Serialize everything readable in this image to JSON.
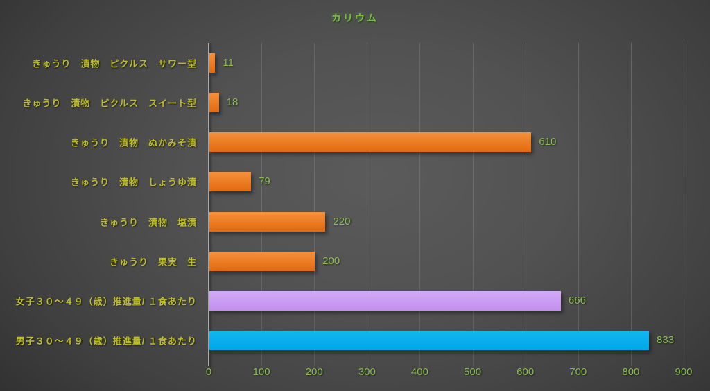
{
  "title": "カリウム",
  "colors": {
    "title_green": "#77c043",
    "value_label_green": "#8abf50",
    "category_label_yellow": "#bdbd29",
    "axis_label_green": "#85bd4d",
    "gridline_gray": "#6e6e6e",
    "axis_line_gray": "#aaaaaa",
    "series": {
      "orange": {
        "top": "#f5913c",
        "bottom": "#e3690e"
      },
      "purple": {
        "top": "#d2aaf6",
        "bottom": "#c28fee"
      },
      "blue": {
        "top": "#13b7f2",
        "bottom": "#00a6e6"
      }
    }
  },
  "chart_data": {
    "type": "bar",
    "orientation": "horizontal",
    "title": "カリウム",
    "xlabel": "",
    "ylabel": "",
    "xlim": [
      0,
      900
    ],
    "x_ticks": [
      0,
      100,
      200,
      300,
      400,
      500,
      600,
      700,
      800,
      900
    ],
    "grid": true,
    "legend": "none",
    "rows": [
      {
        "label": "きゅうり　漬物　ピクルス　サワー型",
        "value": 11,
        "color": "orange"
      },
      {
        "label": "きゅうり　漬物　ピクルス　スイート型",
        "value": 18,
        "color": "orange"
      },
      {
        "label": "きゅうり　漬物　ぬかみそ漬",
        "value": 610,
        "color": "orange"
      },
      {
        "label": "きゅうり　漬物　しょうゆ漬",
        "value": 79,
        "color": "orange"
      },
      {
        "label": "きゅうり　漬物　塩漬",
        "value": 220,
        "color": "orange"
      },
      {
        "label": "きゅうり　果実　生",
        "value": 200,
        "color": "orange"
      },
      {
        "label": "女子３０〜４９（歳）推進量/ １食あたり",
        "value": 666,
        "color": "purple"
      },
      {
        "label": "男子３０〜４９（歳）推進量/ １食あたり",
        "value": 833,
        "color": "blue"
      }
    ]
  }
}
